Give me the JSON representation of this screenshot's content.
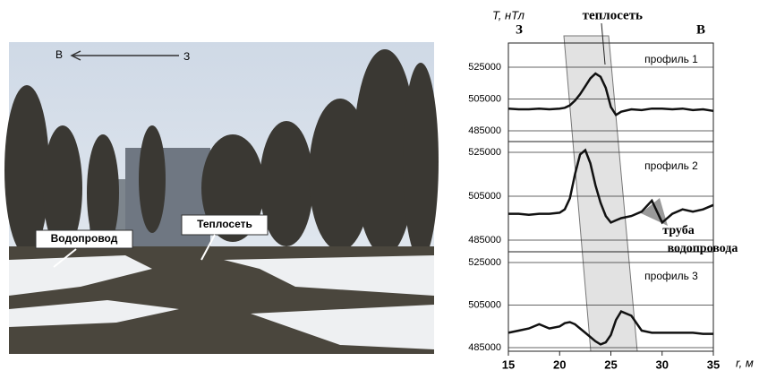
{
  "photo": {
    "direction_left": "В",
    "direction_right": "З",
    "labels": [
      "Водопровод",
      "Теплосеть"
    ]
  },
  "chart_data": [
    {
      "type": "line",
      "ylabel": "T, нТл",
      "annotation": "теплосеть",
      "west": "З",
      "east": "В",
      "xlim": [
        15,
        35
      ],
      "ylim": [
        485000,
        525000
      ],
      "yticks": [
        485000,
        505000,
        525000
      ],
      "grid": true,
      "x": [
        15,
        16,
        17,
        18,
        19,
        20,
        20.5,
        21,
        21.5,
        22,
        22.5,
        23,
        23.5,
        24,
        24.5,
        25,
        25.5,
        26,
        27,
        28,
        29,
        30,
        31,
        32,
        33,
        34,
        35
      ],
      "series": [
        {
          "name": "профиль 1",
          "color": "#111111",
          "values": [
            499000,
            498500,
            498500,
            499000,
            498500,
            499000,
            499500,
            501000,
            504000,
            508000,
            513000,
            518000,
            521000,
            519000,
            512000,
            500000,
            495000,
            497000,
            498500,
            498000,
            499000,
            499000,
            498500,
            499000,
            498000,
            498500,
            497500
          ]
        }
      ]
    },
    {
      "type": "line",
      "annotation": [
        "труба",
        "водопровода"
      ],
      "xlim": [
        15,
        35
      ],
      "ylim": [
        485000,
        525000
      ],
      "yticks": [
        485000,
        505000,
        525000
      ],
      "grid": true,
      "x": [
        15,
        16,
        17,
        18,
        19,
        20,
        20.5,
        21,
        21.5,
        22,
        22.5,
        23,
        23.5,
        24,
        24.5,
        25,
        25.5,
        26,
        27,
        28,
        29,
        30,
        31,
        32,
        33,
        34,
        35
      ],
      "series": [
        {
          "name": "профиль 2",
          "color": "#111111",
          "values": [
            497000,
            497000,
            496500,
            497000,
            497000,
            497500,
            499000,
            504000,
            515000,
            524000,
            526000,
            520000,
            510000,
            502000,
            496000,
            493000,
            494000,
            495000,
            496000,
            498000,
            503000,
            493000,
            497000,
            499000,
            498000,
            499000,
            501000
          ]
        }
      ]
    },
    {
      "type": "line",
      "xlabel": "r, м",
      "xlim": [
        15,
        35
      ],
      "xticks": [
        15,
        20,
        25,
        30,
        35
      ],
      "ylim": [
        485000,
        525000
      ],
      "yticks": [
        485000,
        505000,
        525000
      ],
      "grid": true,
      "x": [
        15,
        16,
        17,
        18,
        19,
        20,
        20.5,
        21,
        21.5,
        22,
        22.5,
        23,
        23.5,
        24,
        24.5,
        25,
        25.5,
        26,
        27,
        28,
        29,
        30,
        31,
        32,
        33,
        34,
        35
      ],
      "series": [
        {
          "name": "профиль 3",
          "color": "#111111",
          "values": [
            492000,
            493000,
            494000,
            496000,
            494000,
            495000,
            496500,
            497000,
            496000,
            494000,
            492000,
            490000,
            488000,
            486500,
            487500,
            491000,
            498000,
            502000,
            500000,
            493000,
            492000,
            492000,
            492000,
            492000,
            492000,
            491500,
            491500
          ]
        }
      ]
    }
  ]
}
